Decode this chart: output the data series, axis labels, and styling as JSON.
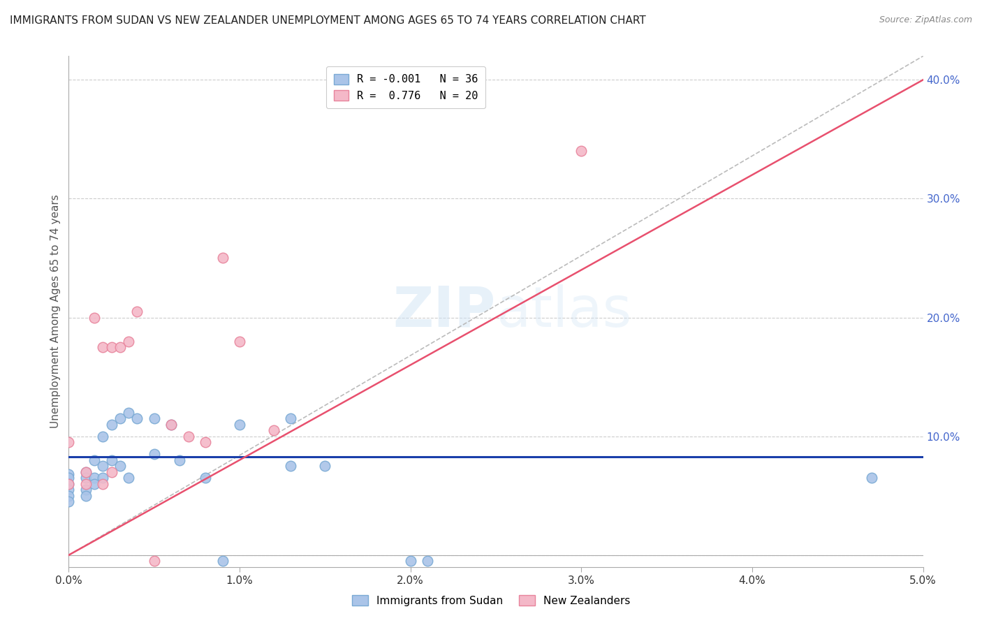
{
  "title": "IMMIGRANTS FROM SUDAN VS NEW ZEALANDER UNEMPLOYMENT AMONG AGES 65 TO 74 YEARS CORRELATION CHART",
  "source": "Source: ZipAtlas.com",
  "ylabel": "Unemployment Among Ages 65 to 74 years",
  "xlim": [
    0.0,
    0.05
  ],
  "ylim": [
    -0.01,
    0.42
  ],
  "xticks": [
    0.0,
    0.01,
    0.02,
    0.03,
    0.04,
    0.05
  ],
  "xticklabels": [
    "0.0%",
    "1.0%",
    "2.0%",
    "3.0%",
    "4.0%",
    "5.0%"
  ],
  "yticks_right": [
    0.0,
    0.1,
    0.2,
    0.3,
    0.4
  ],
  "yticklabels_right": [
    "",
    "10.0%",
    "20.0%",
    "30.0%",
    "40.0%"
  ],
  "grid_color": "#cccccc",
  "background_color": "#ffffff",
  "watermark": "ZIPatlas",
  "legend_r1": "R = -0.001",
  "legend_n1": "N = 36",
  "legend_r2": "R =  0.776",
  "legend_n2": "N = 20",
  "legend_label1": "Immigrants from Sudan",
  "legend_label2": "New Zealanders",
  "sudan_color": "#aac4e8",
  "sudan_edge": "#7aaad4",
  "nz_color": "#f4b8c8",
  "nz_edge": "#e8849c",
  "blue_line_color": "#1a3faa",
  "pink_line_color": "#e8506e",
  "diag_line_color": "#bbbbbb",
  "title_color": "#222222",
  "right_axis_color": "#4466cc",
  "sudan_scatter_x": [
    0.0,
    0.0,
    0.0,
    0.0,
    0.0,
    0.0,
    0.001,
    0.001,
    0.001,
    0.001,
    0.0015,
    0.0015,
    0.0015,
    0.002,
    0.002,
    0.002,
    0.0025,
    0.0025,
    0.003,
    0.003,
    0.0035,
    0.0035,
    0.004,
    0.005,
    0.005,
    0.006,
    0.0065,
    0.008,
    0.009,
    0.01,
    0.013,
    0.013,
    0.015,
    0.02,
    0.021,
    0.047
  ],
  "sudan_scatter_y": [
    0.068,
    0.065,
    0.06,
    0.055,
    0.05,
    0.045,
    0.07,
    0.065,
    0.055,
    0.05,
    0.08,
    0.065,
    0.06,
    0.1,
    0.075,
    0.065,
    0.11,
    0.08,
    0.115,
    0.075,
    0.12,
    0.065,
    0.115,
    0.115,
    0.085,
    0.11,
    0.08,
    0.065,
    -0.005,
    0.11,
    0.115,
    0.075,
    0.075,
    -0.005,
    -0.005,
    0.065
  ],
  "nz_scatter_x": [
    0.0,
    0.0,
    0.001,
    0.001,
    0.0015,
    0.002,
    0.002,
    0.0025,
    0.0025,
    0.003,
    0.0035,
    0.004,
    0.005,
    0.006,
    0.007,
    0.008,
    0.009,
    0.01,
    0.012,
    0.03
  ],
  "nz_scatter_y": [
    0.095,
    0.06,
    0.07,
    0.06,
    0.2,
    0.175,
    0.06,
    0.175,
    0.07,
    0.175,
    0.18,
    0.205,
    -0.005,
    0.11,
    0.1,
    0.095,
    0.25,
    0.18,
    0.105,
    0.34
  ],
  "blue_trendline_x": [
    0.0,
    0.05
  ],
  "blue_trendline_y": [
    0.083,
    0.083
  ],
  "pink_trendline_x": [
    0.0,
    0.05
  ],
  "pink_trendline_y": [
    0.0,
    0.4
  ],
  "diag_line_x": [
    0.0,
    0.05
  ],
  "diag_line_y": [
    0.0,
    0.42
  ]
}
